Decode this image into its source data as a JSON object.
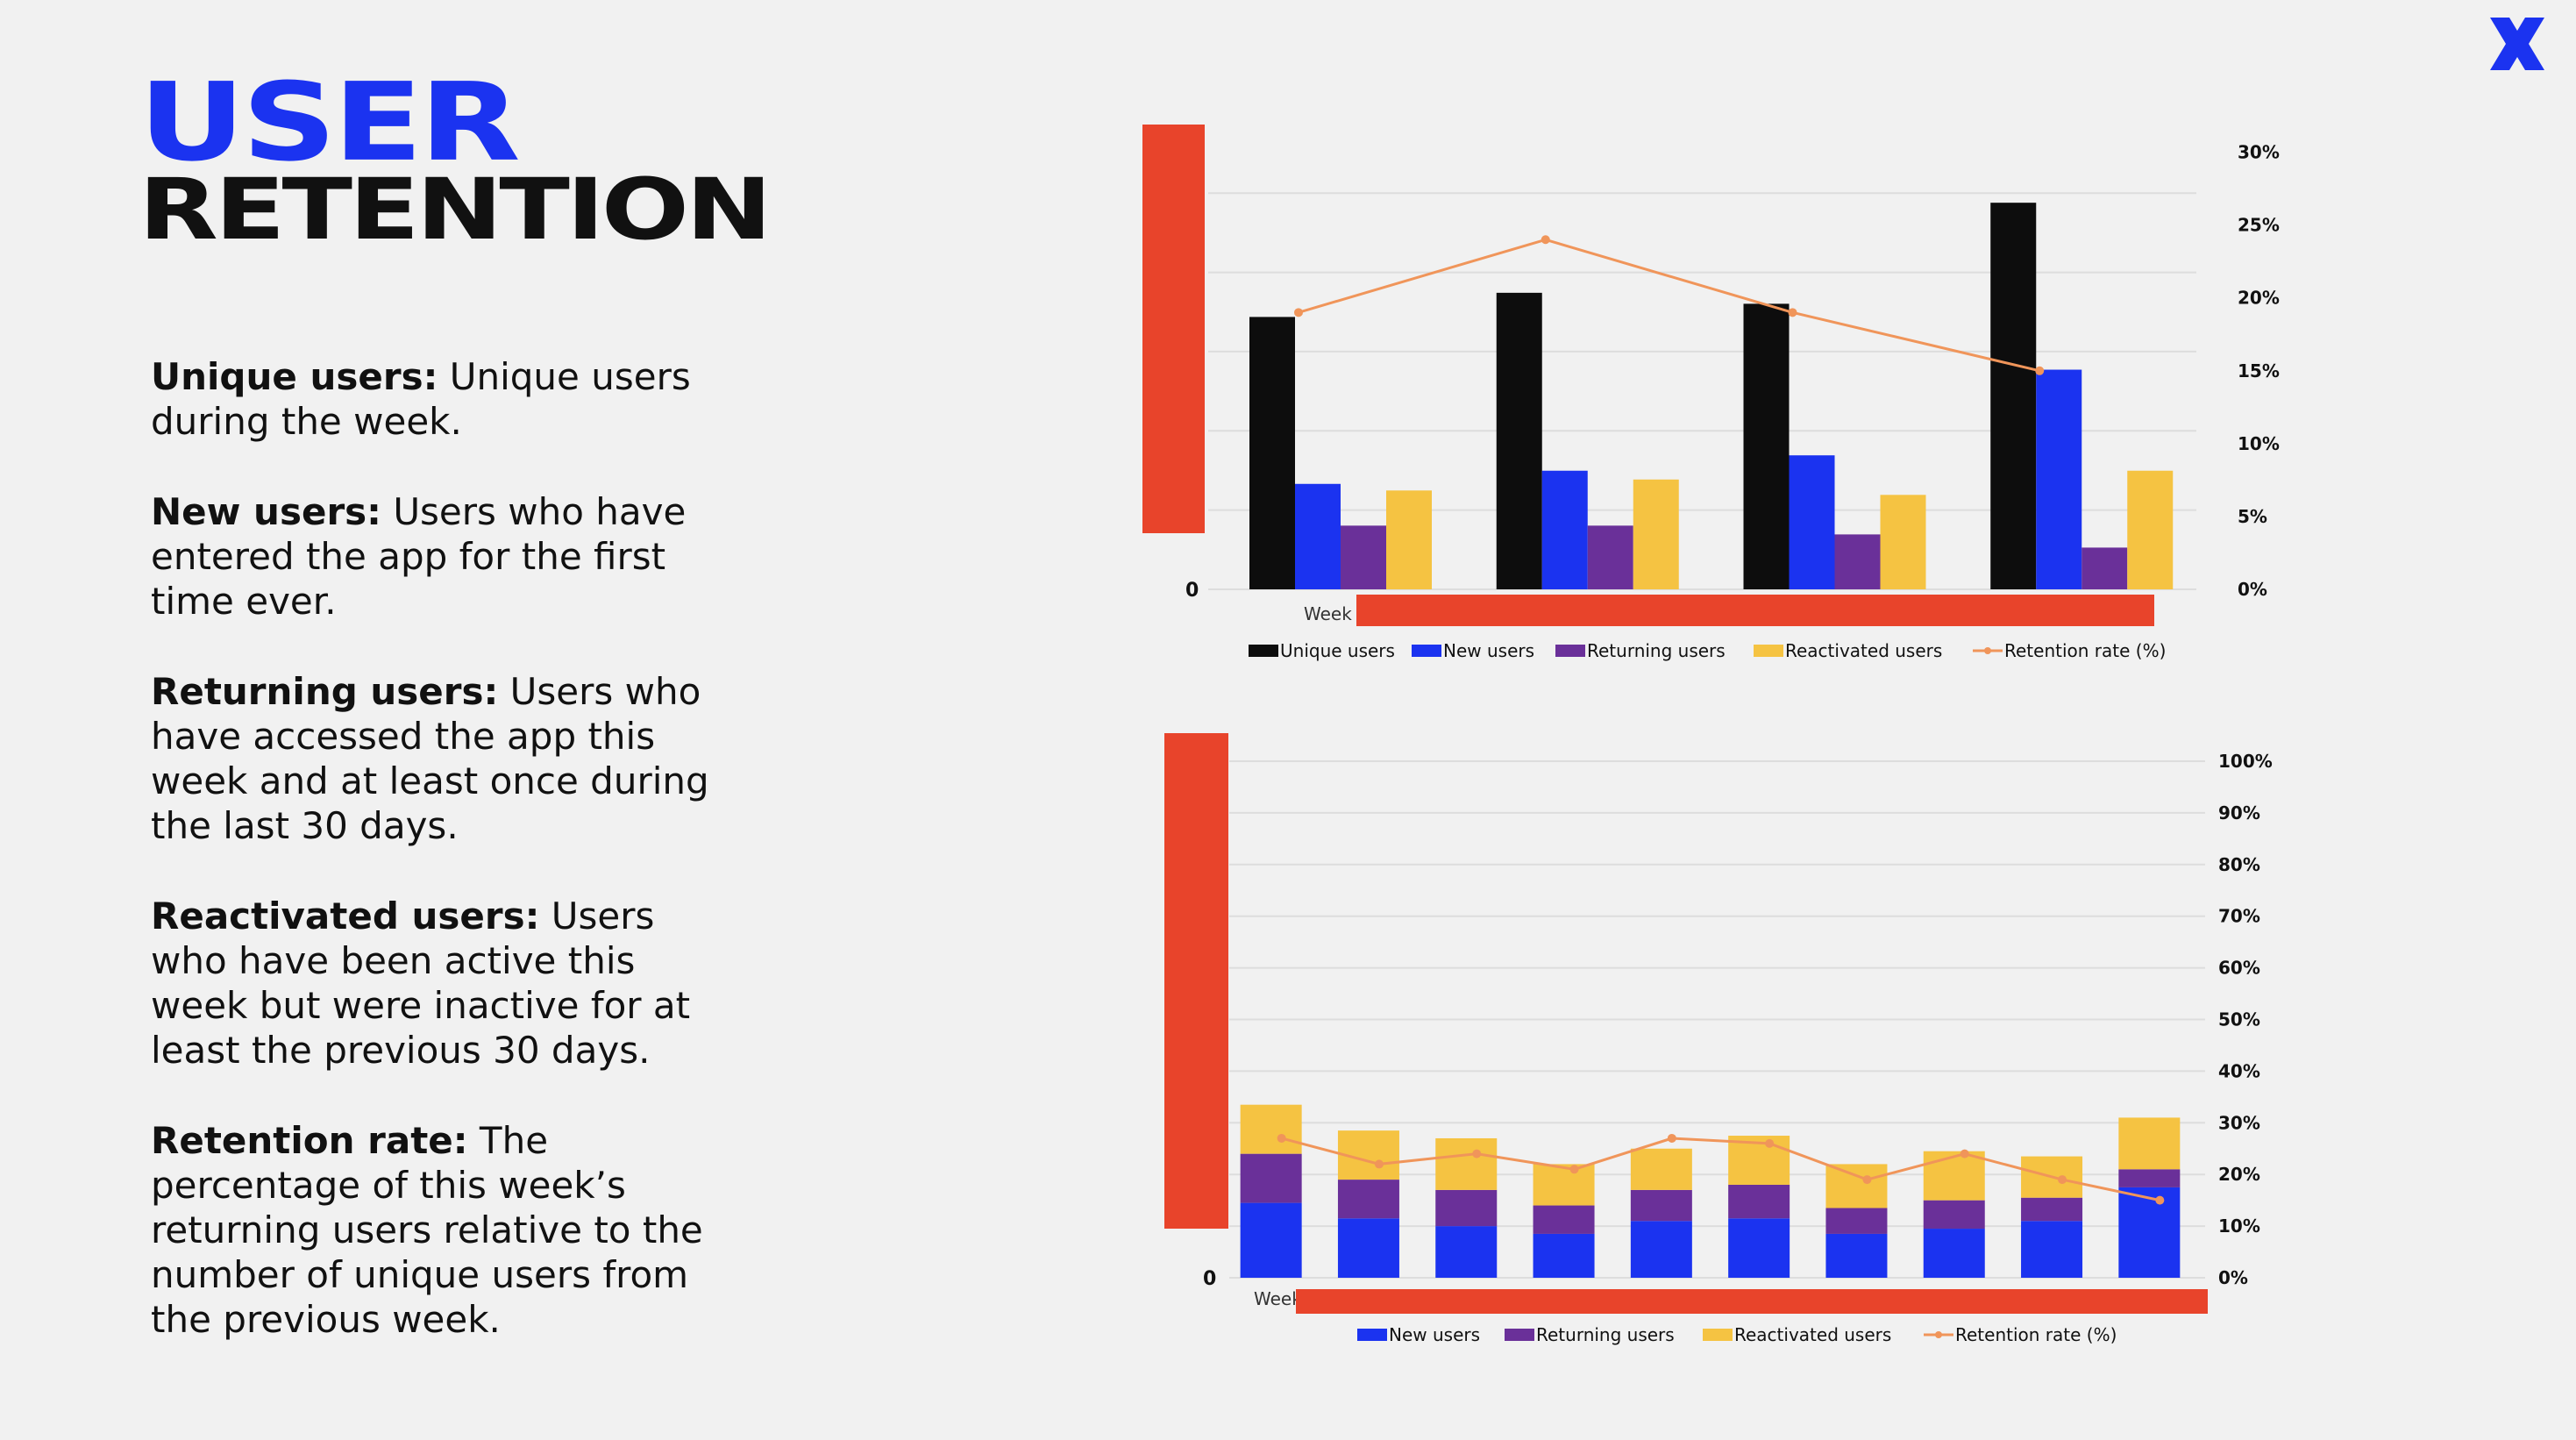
{
  "logo": {
    "icon": "brand-x-icon",
    "color": "#1b33f0"
  },
  "title": {
    "line1": "USER",
    "line2": "RETENTION"
  },
  "definitions": [
    {
      "term": "Unique users:",
      "text": "Unique users during the week."
    },
    {
      "term": "New users:",
      "text": "Users who have entered the app for the first time ever."
    },
    {
      "term": "Returning users:",
      "text": "Users who have accessed the app this week and at least once during the last 30 days."
    },
    {
      "term": "Reactivated users:",
      "text": "Users who have been active this week but were inactive for at least the previous 30 days."
    },
    {
      "term": "Retention rate:",
      "text": "The percentage of this week’s returning users relative to the number of unique users from the previous week."
    }
  ],
  "colors": {
    "unique": "#0d0d0d",
    "new": "#1b33f0",
    "returning": "#6a3099",
    "reactivated": "#f5c342",
    "retention": "#f0955a",
    "redaction": "#e8442b",
    "grid": "#dddddd"
  },
  "chart_data": [
    {
      "type": "bar",
      "left_axis_zero": "0",
      "x_label_partial": "Week",
      "series": [
        {
          "name": "Unique users",
          "color_key": "unique",
          "values": [
            0.62,
            0.675,
            0.65,
            0.88
          ]
        },
        {
          "name": "New users",
          "color_key": "new",
          "values": [
            0.24,
            0.27,
            0.305,
            0.5
          ]
        },
        {
          "name": "Returning users",
          "color_key": "returning",
          "values": [
            0.145,
            0.145,
            0.125,
            0.095
          ]
        },
        {
          "name": "Reactivated users",
          "color_key": "reactivated",
          "values": [
            0.225,
            0.25,
            0.215,
            0.27
          ]
        }
      ],
      "line": {
        "name": "Retention rate (%)",
        "color_key": "retention",
        "values": [
          19,
          24,
          19,
          15
        ]
      },
      "right_axis": {
        "ticks": [
          "30%",
          "25%",
          "20%",
          "15%",
          "10%",
          "5%",
          "0%"
        ],
        "range": [
          0,
          30
        ]
      }
    },
    {
      "type": "bar",
      "stacked": true,
      "left_axis_zero": "0",
      "x_label_partial": "Week",
      "series": [
        {
          "name": "New users",
          "color_key": "new",
          "values": [
            0.145,
            0.115,
            0.1,
            0.085,
            0.11,
            0.115,
            0.085,
            0.095,
            0.11,
            0.175
          ]
        },
        {
          "name": "Returning users",
          "color_key": "returning",
          "values": [
            0.095,
            0.075,
            0.07,
            0.055,
            0.06,
            0.065,
            0.05,
            0.055,
            0.045,
            0.035
          ]
        },
        {
          "name": "Reactivated users",
          "color_key": "reactivated",
          "values": [
            0.095,
            0.095,
            0.1,
            0.08,
            0.08,
            0.095,
            0.085,
            0.095,
            0.08,
            0.1
          ]
        }
      ],
      "line": {
        "name": "Retention rate (%)",
        "color_key": "retention",
        "values": [
          27,
          22,
          24,
          21,
          27,
          26,
          19,
          24,
          19,
          15
        ]
      },
      "right_axis": {
        "ticks": [
          "100%",
          "90%",
          "80%",
          "70%",
          "60%",
          "50%",
          "40%",
          "30%",
          "20%",
          "10%",
          "0%"
        ],
        "range": [
          0,
          100
        ]
      }
    }
  ]
}
